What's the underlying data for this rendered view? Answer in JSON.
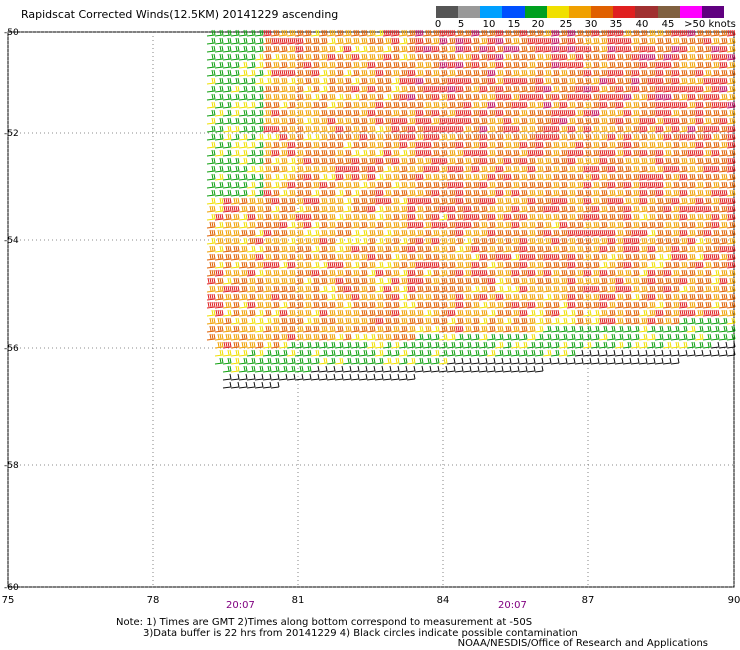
{
  "title": "Rapidscat Corrected Winds(12.5KM) 20141229 ascending",
  "colorbar": {
    "colors": [
      "#555555",
      "#999999",
      "#00a0ff",
      "#0050ff",
      "#00a020",
      "#f0e000",
      "#f0a000",
      "#e06000",
      "#e02020",
      "#a03030",
      "#806040",
      "#ff00ff",
      "#600080"
    ],
    "labels": [
      "0",
      "5",
      "10",
      "15",
      "20",
      "25",
      "30",
      "35",
      "40",
      "45",
      ">50 knots"
    ]
  },
  "axes": {
    "y_labels": [
      "-50",
      "-52",
      "-54",
      "-56",
      "-58",
      "-60"
    ],
    "x_labels": [
      "75",
      "78",
      "81",
      "84",
      "87",
      "90"
    ]
  },
  "times": [
    "20:07",
    "20:07"
  ],
  "notes": {
    "line1": "Note: 1) Times are GMT 2)Times along bottom correspond to measurement at -50S",
    "line2": "3)Data buffer is 22 hrs from 20141229 4) Black circles indicate possible contamination",
    "credit": "NOAA/NESDIS/Office of Research and Applications"
  },
  "wind_field": {
    "lon_range": [
      79.5,
      90
    ],
    "lat_range": [
      -57,
      -50
    ],
    "dominant_direction": "westerly",
    "speed_knots_range": [
      0,
      45
    ]
  }
}
